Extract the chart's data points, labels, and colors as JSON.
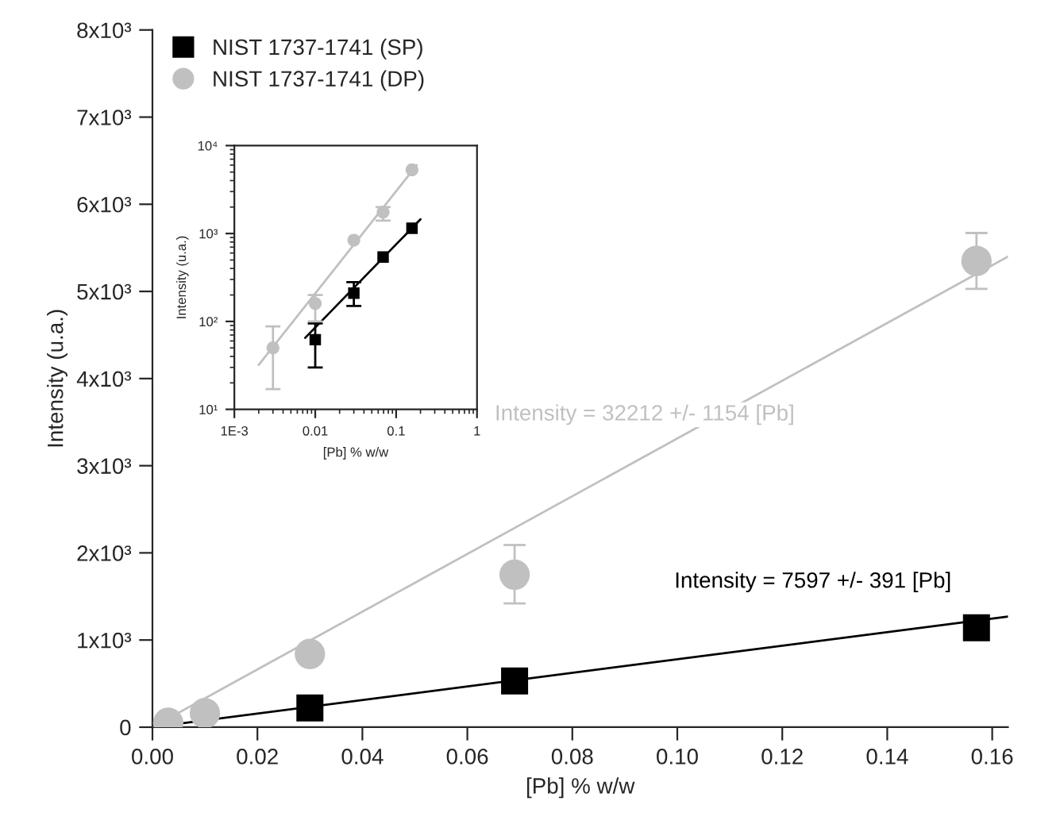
{
  "chart_data": [
    {
      "type": "scatter",
      "xlabel": "[Pb] % w/w",
      "ylabel": "Intensity (u.a.)",
      "xlim": [
        0,
        0.163
      ],
      "ylim": [
        0,
        8000
      ],
      "xticks": [
        {
          "value": 0,
          "label": "0.00"
        },
        {
          "value": 0.02,
          "label": "0.02"
        },
        {
          "value": 0.04,
          "label": "0.04"
        },
        {
          "value": 0.06,
          "label": "0.06"
        },
        {
          "value": 0.08,
          "label": "0.08"
        },
        {
          "value": 0.1,
          "label": "0.10"
        },
        {
          "value": 0.12,
          "label": "0.12"
        },
        {
          "value": 0.14,
          "label": "0.14"
        },
        {
          "value": 0.16,
          "label": "0.16"
        }
      ],
      "yticks": [
        0,
        {
          "value": 1000,
          "label": "1x10³"
        },
        {
          "value": 2000,
          "label": "2x10³"
        },
        {
          "value": 3000,
          "label": "3x10³"
        },
        {
          "value": 4000,
          "label": "4x10³"
        },
        {
          "value": 5000,
          "label": "5x10³"
        },
        {
          "value": 6000,
          "label": "6x10³"
        },
        {
          "value": 7000,
          "label": "7x10³"
        },
        {
          "value": 8000,
          "label": "8x10³"
        }
      ],
      "grid": false,
      "legend": "top left",
      "series": [
        {
          "name": "NIST 1737-1741 (SP)",
          "marker": "square",
          "color": "#000000",
          "x": [
            0.03,
            0.069,
            0.157
          ],
          "values": [
            220,
            530,
            1140
          ]
        },
        {
          "name": "NIST 1737-1741 (DP)",
          "marker": "circle",
          "color": "#c0c0c0",
          "x": [
            0.003,
            0.01,
            0.03,
            0.069,
            0.157
          ],
          "values": [
            50,
            160,
            840,
            1750,
            5350
          ],
          "errors": [
            null,
            null,
            null,
            [
              1420,
              2090
            ],
            [
              5030,
              5670
            ]
          ]
        },
        {
          "type": "line",
          "color": "#000000",
          "x": [
            0,
            0.163
          ],
          "values": [
            0,
            1270
          ]
        },
        {
          "type": "line",
          "color": "#c0c0c0",
          "x": [
            0,
            0.163
          ],
          "values": [
            0,
            5400
          ]
        }
      ],
      "annotations": [
        "Intensity = 7597 +/- 391 [Pb]",
        "Intensity = 32212 +/- 1154 [Pb]"
      ]
    },
    {
      "type": "scatter",
      "xlabel": "[Pb] % w/w",
      "ylabel": "Intensity (u.a.)",
      "log": "xy",
      "xlim": [
        0.001,
        1
      ],
      "ylim": [
        10,
        10000
      ],
      "xticks": [
        {
          "value": 0.001,
          "label": "1E-3"
        },
        0.01,
        0.1,
        1
      ],
      "yticks": [
        {
          "value": 10,
          "label": "10¹"
        },
        {
          "value": 100,
          "label": "10²"
        },
        {
          "value": 1000,
          "label": "10³"
        },
        {
          "value": 10000,
          "label": "10⁴"
        }
      ],
      "grid": false,
      "series": [
        {
          "marker": "square",
          "color": "#000000",
          "x": [
            0.01,
            0.03,
            0.069,
            0.157
          ],
          "values": [
            62,
            210,
            540,
            1150
          ],
          "errors": [
            [
              30,
              95
            ],
            [
              150,
              280
            ],
            null,
            null
          ]
        },
        {
          "marker": "circle",
          "color": "#c0c0c0",
          "x": [
            0.003,
            0.01,
            0.03,
            0.069,
            0.157
          ],
          "values": [
            50,
            160,
            840,
            1750,
            5300
          ],
          "errors": [
            [
              17,
              88
            ],
            [
              100,
              200
            ],
            null,
            [
              1400,
              2000
            ],
            null
          ]
        },
        {
          "type": "line",
          "color": "#000000",
          "x": [
            0.0075,
            0.2
          ],
          "values": [
            65,
            1450
          ]
        },
        {
          "type": "line",
          "color": "#c0c0c0",
          "x": [
            0.002,
            0.18
          ],
          "values": [
            32,
            6000
          ]
        }
      ]
    }
  ]
}
